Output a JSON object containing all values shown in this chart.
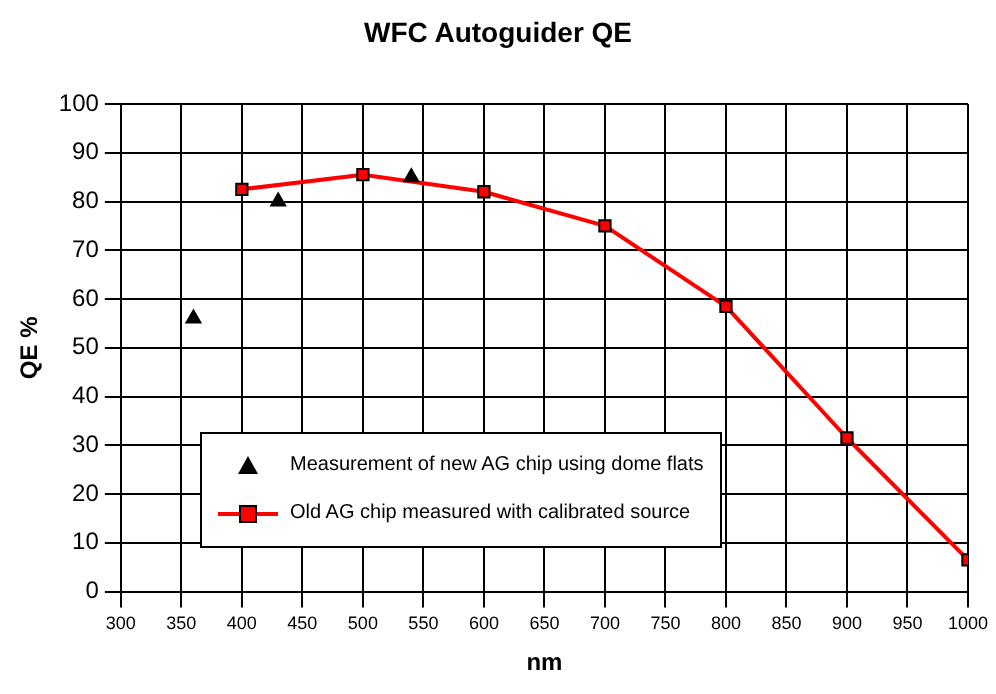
{
  "chart_data": {
    "type": "line",
    "title": "WFC Autoguider QE",
    "xlabel": "nm",
    "ylabel": "QE %",
    "xlim": [
      300,
      1000
    ],
    "xticks": [
      300,
      350,
      400,
      450,
      500,
      550,
      600,
      650,
      700,
      750,
      800,
      850,
      900,
      950,
      1000
    ],
    "ylim": [
      0,
      100
    ],
    "yticks": [
      0,
      10,
      20,
      30,
      40,
      50,
      60,
      70,
      80,
      90,
      100
    ],
    "grid": true,
    "legend": "bottom left",
    "series": [
      {
        "name": "Measurement of new AG chip using dome flats",
        "type": "scatter",
        "marker": "triangle",
        "color": "#000000",
        "x": [
          360,
          430,
          540
        ],
        "values": [
          56,
          80,
          85
        ]
      },
      {
        "name": "Old AG chip measured with calibrated source",
        "type": "line",
        "marker": "square",
        "color": "#ff0000",
        "x": [
          400,
          500,
          600,
          700,
          800,
          900,
          1000
        ],
        "values": [
          82.5,
          85.5,
          82,
          75,
          58.5,
          31.5,
          6.5
        ]
      }
    ]
  }
}
